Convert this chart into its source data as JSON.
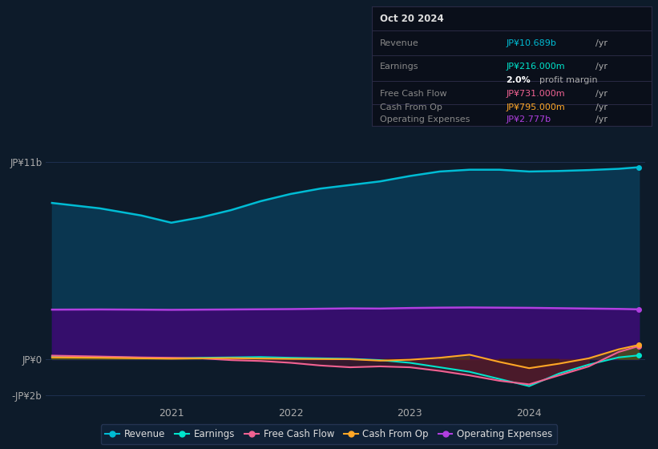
{
  "background_color": "#0d1b2a",
  "plot_bg_color": "#0d1b2a",
  "ylim": [
    -2500000000,
    12500000000
  ],
  "yticks": [
    -2000000000,
    0,
    11000000000
  ],
  "ytick_labels": [
    "-JP¥2b",
    "JP¥0",
    "JP¥11b"
  ],
  "xtick_positions": [
    2021.0,
    2022.0,
    2023.0,
    2024.0
  ],
  "xtick_labels": [
    "2021",
    "2022",
    "2023",
    "2024"
  ],
  "grid_color": "#1e3050",
  "x": [
    2020.0,
    2020.4,
    2020.75,
    2021.0,
    2021.25,
    2021.5,
    2021.75,
    2022.0,
    2022.25,
    2022.5,
    2022.75,
    2023.0,
    2023.25,
    2023.5,
    2023.75,
    2024.0,
    2024.25,
    2024.5,
    2024.75,
    2024.92
  ],
  "revenue": [
    8700000000,
    8400000000,
    8000000000,
    7600000000,
    7900000000,
    8300000000,
    8800000000,
    9200000000,
    9500000000,
    9700000000,
    9900000000,
    10200000000,
    10450000000,
    10550000000,
    10550000000,
    10450000000,
    10480000000,
    10530000000,
    10600000000,
    10689000000
  ],
  "operating_expenses": [
    2760000000,
    2770000000,
    2760000000,
    2750000000,
    2760000000,
    2770000000,
    2780000000,
    2790000000,
    2810000000,
    2830000000,
    2820000000,
    2850000000,
    2870000000,
    2880000000,
    2870000000,
    2860000000,
    2840000000,
    2820000000,
    2800000000,
    2777000000
  ],
  "earnings": [
    150000000,
    120000000,
    80000000,
    50000000,
    80000000,
    100000000,
    120000000,
    80000000,
    50000000,
    20000000,
    -50000000,
    -200000000,
    -450000000,
    -700000000,
    -1100000000,
    -1500000000,
    -800000000,
    -300000000,
    100000000,
    216000000
  ],
  "free_cash_flow": [
    200000000,
    150000000,
    100000000,
    80000000,
    50000000,
    -50000000,
    -100000000,
    -200000000,
    -350000000,
    -450000000,
    -400000000,
    -450000000,
    -650000000,
    -900000000,
    -1200000000,
    -1400000000,
    -900000000,
    -400000000,
    400000000,
    731000000
  ],
  "cash_from_op": [
    100000000,
    80000000,
    50000000,
    30000000,
    50000000,
    60000000,
    40000000,
    20000000,
    10000000,
    0,
    -80000000,
    -30000000,
    80000000,
    250000000,
    -150000000,
    -500000000,
    -250000000,
    50000000,
    550000000,
    795000000
  ],
  "revenue_color": "#00bcd4",
  "operating_expenses_color": "#b03fe0",
  "earnings_color": "#00e5cc",
  "free_cash_flow_color": "#f06292",
  "cash_from_op_color": "#ffa726",
  "revenue_fill": "#0a3a55",
  "operating_expenses_fill": "#3a0a70",
  "earnings_fill_pos": "#004d40",
  "earnings_fill_neg": "#5a1a20",
  "free_cash_flow_fill_pos": "#3a6b30",
  "free_cash_flow_fill_neg": "#5a1a30",
  "cash_from_op_fill_pos": "#5a4a00",
  "cash_from_op_fill_neg": "#4a2000",
  "info_box": {
    "date": "Oct 20 2024",
    "revenue_label": "Revenue",
    "revenue_value": "JP¥10.689b",
    "revenue_unit": "/yr",
    "earnings_label": "Earnings",
    "earnings_value": "JP¥216.000m",
    "earnings_unit": "/yr",
    "profit_margin": "2.0%",
    "profit_margin_text": "profit margin",
    "fcf_label": "Free Cash Flow",
    "fcf_value": "JP¥731.000m",
    "fcf_unit": "/yr",
    "cfo_label": "Cash From Op",
    "cfo_value": "JP¥795.000m",
    "cfo_unit": "/yr",
    "opex_label": "Operating Expenses",
    "opex_value": "JP¥2.777b",
    "opex_unit": "/yr"
  },
  "legend": [
    {
      "label": "Revenue",
      "color": "#00bcd4"
    },
    {
      "label": "Earnings",
      "color": "#00e5cc"
    },
    {
      "label": "Free Cash Flow",
      "color": "#f06292"
    },
    {
      "label": "Cash From Op",
      "color": "#ffa726"
    },
    {
      "label": "Operating Expenses",
      "color": "#b03fe0"
    }
  ]
}
